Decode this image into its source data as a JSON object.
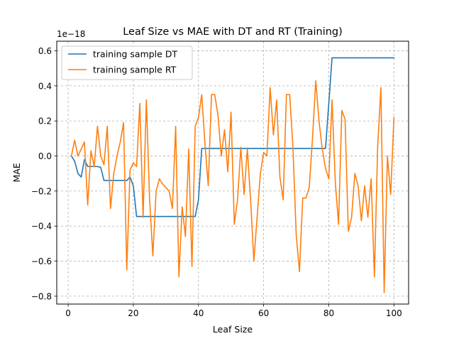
{
  "chart_data": {
    "type": "line",
    "title": "Leaf Size vs MAE with DT and RT (Training)",
    "xlabel": "Leaf Size",
    "ylabel": "MAE",
    "offset_label": "1e−18",
    "xlim": [
      -3.5,
      104.5
    ],
    "ylim": [
      -0.845,
      0.655
    ],
    "xticks": [
      0,
      20,
      40,
      60,
      80,
      100
    ],
    "xtick_labels": [
      "0",
      "20",
      "40",
      "60",
      "80",
      "100"
    ],
    "yticks": [
      -0.8,
      -0.6,
      -0.4,
      -0.2,
      0.0,
      0.2,
      0.4,
      0.6
    ],
    "ytick_labels": [
      "−0.8",
      "−0.6",
      "−0.4",
      "−0.2",
      "0.0",
      "0.2",
      "0.4",
      "0.6"
    ],
    "grid": true,
    "legend_position": "top-left",
    "series": [
      {
        "name": "training sample DT",
        "color": "#1f77b4",
        "points": [
          [
            1,
            0.0
          ],
          [
            2,
            -0.03
          ],
          [
            3,
            -0.1
          ],
          [
            4,
            -0.12
          ],
          [
            5,
            -0.02
          ],
          [
            6,
            -0.06
          ],
          [
            7,
            -0.06
          ],
          [
            8,
            -0.06
          ],
          [
            9,
            -0.06
          ],
          [
            10,
            -0.065
          ],
          [
            11,
            -0.14
          ],
          [
            12,
            -0.14
          ],
          [
            13,
            -0.14
          ],
          [
            14,
            -0.14
          ],
          [
            15,
            -0.14
          ],
          [
            16,
            -0.14
          ],
          [
            17,
            -0.14
          ],
          [
            18,
            -0.14
          ],
          [
            19,
            -0.12
          ],
          [
            20,
            -0.17
          ],
          [
            21,
            -0.345
          ],
          [
            22,
            -0.345
          ],
          [
            30,
            -0.345
          ],
          [
            38,
            -0.345
          ],
          [
            39,
            -0.345
          ],
          [
            40,
            -0.25
          ],
          [
            41,
            0.043
          ],
          [
            42,
            0.043
          ],
          [
            60,
            0.043
          ],
          [
            79,
            0.043
          ],
          [
            80,
            0.3
          ],
          [
            81,
            0.56
          ],
          [
            82,
            0.56
          ],
          [
            100,
            0.56
          ]
        ]
      },
      {
        "name": "training sample RT",
        "color": "#ff7f0e",
        "points": [
          [
            1,
            0.0
          ],
          [
            2,
            0.09
          ],
          [
            3,
            0.0
          ],
          [
            4,
            0.04
          ],
          [
            5,
            0.08
          ],
          [
            6,
            -0.28
          ],
          [
            7,
            0.03
          ],
          [
            8,
            -0.06
          ],
          [
            9,
            0.17
          ],
          [
            10,
            0.0
          ],
          [
            11,
            -0.05
          ],
          [
            12,
            0.17
          ],
          [
            13,
            -0.3
          ],
          [
            14,
            -0.1
          ],
          [
            15,
            0.0
          ],
          [
            16,
            0.08
          ],
          [
            17,
            0.19
          ],
          [
            18,
            -0.65
          ],
          [
            19,
            -0.08
          ],
          [
            20,
            -0.04
          ],
          [
            21,
            -0.06
          ],
          [
            22,
            0.3
          ],
          [
            23,
            -0.35
          ],
          [
            24,
            0.32
          ],
          [
            25,
            -0.25
          ],
          [
            26,
            -0.57
          ],
          [
            27,
            -0.2
          ],
          [
            28,
            -0.13
          ],
          [
            29,
            -0.16
          ],
          [
            30,
            -0.18
          ],
          [
            31,
            -0.2
          ],
          [
            32,
            -0.3
          ],
          [
            33,
            0.17
          ],
          [
            34,
            -0.69
          ],
          [
            35,
            -0.29
          ],
          [
            36,
            -0.46
          ],
          [
            37,
            0.04
          ],
          [
            38,
            -0.63
          ],
          [
            39,
            0.17
          ],
          [
            40,
            0.22
          ],
          [
            41,
            0.35
          ],
          [
            42,
            0.07
          ],
          [
            43,
            -0.17
          ],
          [
            44,
            0.35
          ],
          [
            45,
            0.35
          ],
          [
            46,
            0.23
          ],
          [
            47,
            0.0
          ],
          [
            48,
            0.15
          ],
          [
            49,
            -0.09
          ],
          [
            50,
            0.25
          ],
          [
            51,
            -0.39
          ],
          [
            52,
            -0.25
          ],
          [
            53,
            0.05
          ],
          [
            54,
            -0.22
          ],
          [
            55,
            0.04
          ],
          [
            56,
            -0.25
          ],
          [
            57,
            -0.6
          ],
          [
            58,
            -0.35
          ],
          [
            59,
            -0.1
          ],
          [
            60,
            0.02
          ],
          [
            61,
            0.0
          ],
          [
            62,
            0.39
          ],
          [
            63,
            0.12
          ],
          [
            64,
            0.32
          ],
          [
            65,
            -0.12
          ],
          [
            66,
            -0.25
          ],
          [
            67,
            0.35
          ],
          [
            68,
            0.35
          ],
          [
            69,
            0.05
          ],
          [
            70,
            -0.45
          ],
          [
            71,
            -0.66
          ],
          [
            72,
            -0.24
          ],
          [
            73,
            -0.24
          ],
          [
            74,
            -0.18
          ],
          [
            75,
            0.1
          ],
          [
            76,
            0.43
          ],
          [
            77,
            0.2
          ],
          [
            78,
            0.04
          ],
          [
            79,
            -0.07
          ],
          [
            80,
            -0.13
          ],
          [
            81,
            0.32
          ],
          [
            82,
            -0.15
          ],
          [
            83,
            -0.39
          ],
          [
            84,
            0.26
          ],
          [
            85,
            0.21
          ],
          [
            86,
            -0.43
          ],
          [
            87,
            -0.35
          ],
          [
            88,
            -0.1
          ],
          [
            89,
            -0.17
          ],
          [
            90,
            -0.37
          ],
          [
            91,
            -0.17
          ],
          [
            92,
            -0.35
          ],
          [
            93,
            -0.13
          ],
          [
            94,
            -0.69
          ],
          [
            95,
            0.05
          ],
          [
            96,
            0.39
          ],
          [
            97,
            -0.78
          ],
          [
            98,
            0.0
          ],
          [
            99,
            -0.22
          ],
          [
            100,
            0.22
          ]
        ]
      }
    ]
  }
}
